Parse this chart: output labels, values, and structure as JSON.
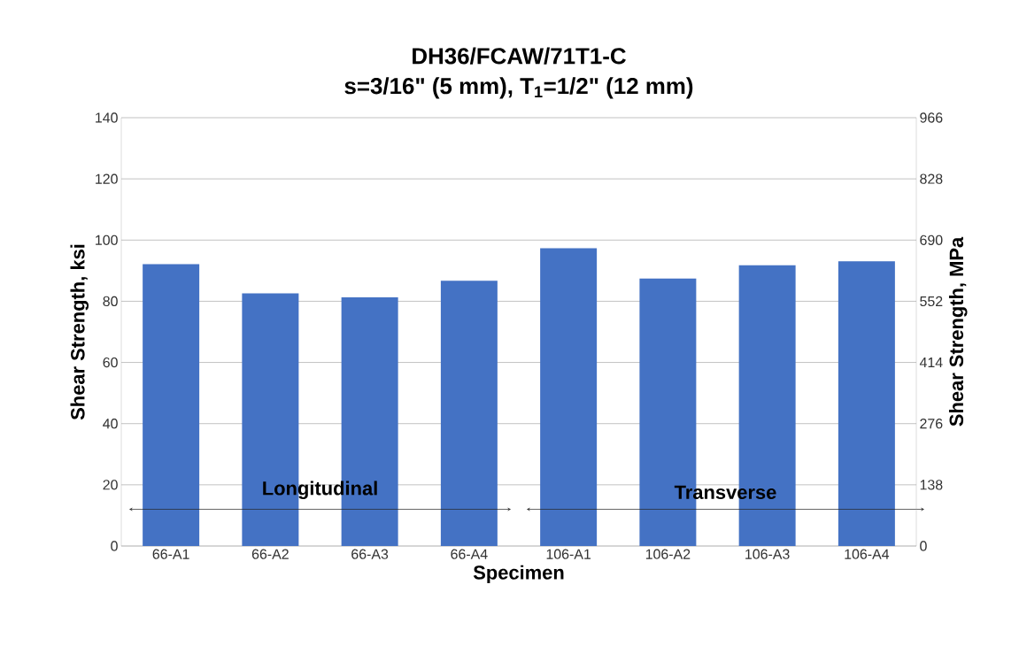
{
  "chart_data": {
    "type": "bar",
    "title": "DH36/FCAW/71T1-C",
    "subtitle": "s=3/16\" (5 mm), T$_{1}$=1/2\" (12 mm)",
    "xlabel": "Specimen",
    "ylabel": "Shear Strength, ksi",
    "y2label": "Shear Strength, MPa",
    "categories": [
      "66-A1",
      "66-A2",
      "66-A3",
      "66-A4",
      "106-A1",
      "106-A2",
      "106-A3",
      "106-A4"
    ],
    "values": [
      92.1,
      82.6,
      81.3,
      86.7,
      97.3,
      87.4,
      91.8,
      93.1
    ],
    "color": "#4472c4",
    "ylim": [
      0,
      140
    ],
    "yticks": [
      0,
      20,
      40,
      60,
      80,
      100,
      120,
      140
    ],
    "y2lim": [
      0,
      966
    ],
    "y2ticks": [
      0,
      138,
      276,
      414,
      552,
      690,
      828,
      966
    ],
    "grid": "y",
    "annotations": [
      "Longitudinal",
      "Transverse"
    ]
  }
}
